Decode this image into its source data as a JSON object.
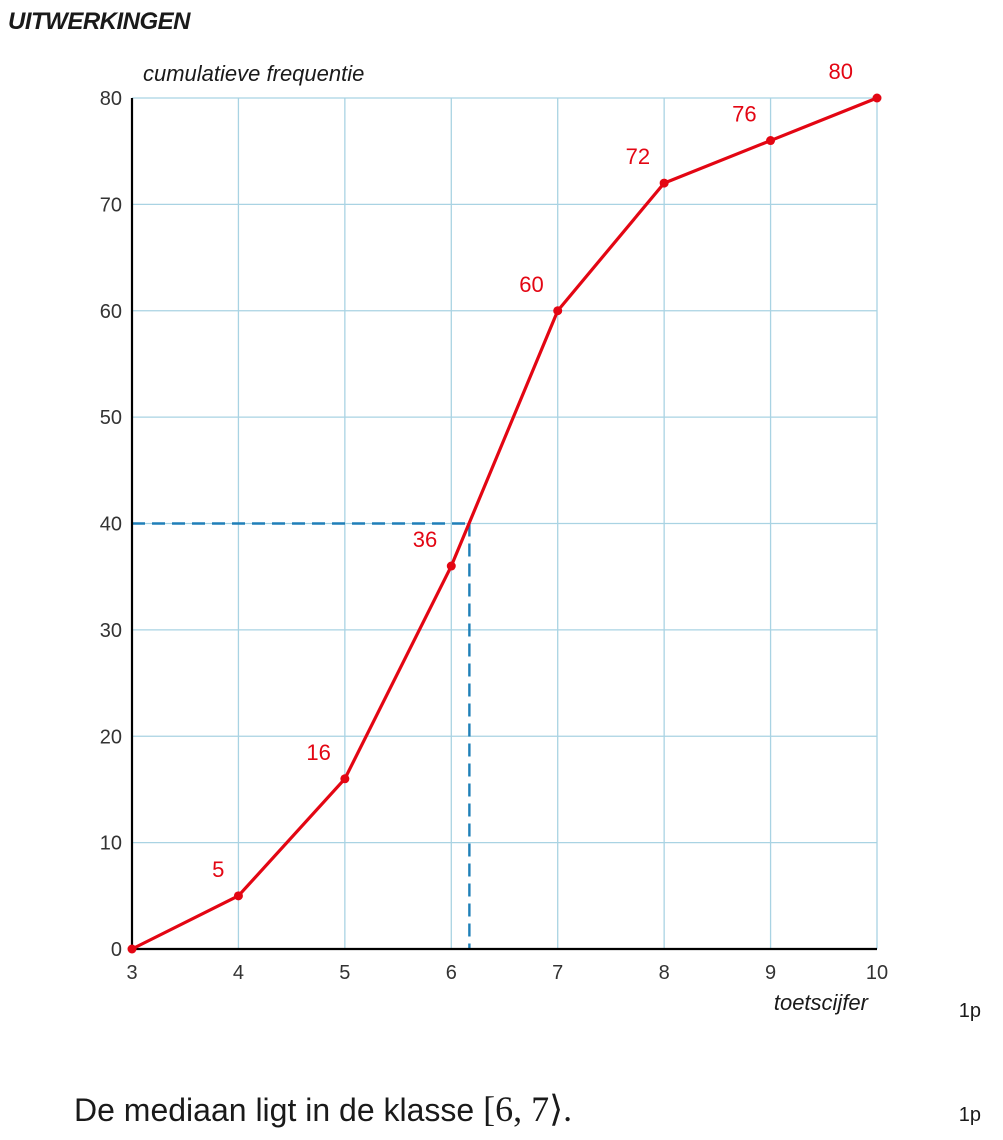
{
  "page": {
    "heading": "UITWERKINGEN",
    "points_1": "1p",
    "points_2": "1p",
    "answer_text": "De mediaan ligt in de klasse",
    "answer_math": "[6, 7⟩."
  },
  "chart_data": {
    "type": "line",
    "title": "",
    "xlabel": "toetscijfer",
    "ylabel": "cumulatieve frequentie",
    "xlim": [
      3,
      10
    ],
    "ylim": [
      0,
      80
    ],
    "xticks": [
      "3",
      "4",
      "5",
      "6",
      "7",
      "8",
      "9",
      "10"
    ],
    "yticks": [
      "0",
      "10",
      "20",
      "30",
      "40",
      "50",
      "60",
      "70",
      "80"
    ],
    "grid": true,
    "series": [
      {
        "color": "#e30613",
        "x": [
          3,
          4,
          5,
          6,
          7,
          8,
          9,
          10
        ],
        "values": [
          0,
          5,
          16,
          36,
          60,
          72,
          76,
          80
        ],
        "data_labels": [
          "",
          "5",
          "16",
          "36",
          "60",
          "72",
          "76",
          "80"
        ]
      }
    ],
    "median_guide": {
      "y": 40,
      "x": 6.17,
      "color": "#1f7fb8",
      "style": "dashed"
    },
    "colors": {
      "grid": "#a9d3e3",
      "axis": "#000000",
      "line": "#e30613",
      "guide": "#1f7fb8"
    }
  }
}
